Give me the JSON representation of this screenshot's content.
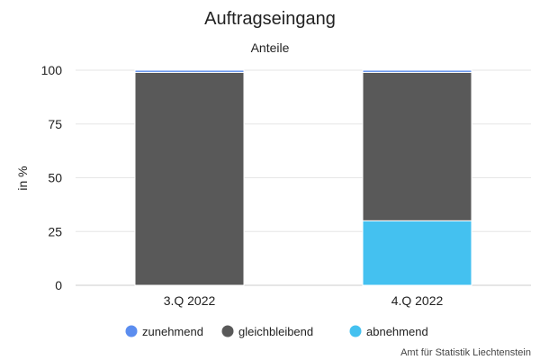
{
  "chart_data": {
    "type": "bar",
    "stacked": true,
    "title": "Auftragseingang",
    "subtitle": "Anteile",
    "ylabel": "in %",
    "xlabel": "",
    "ylim": [
      0,
      100
    ],
    "yticks": [
      0,
      25,
      50,
      75,
      100
    ],
    "categories": [
      "3.Q 2022",
      "4.Q 2022"
    ],
    "series": [
      {
        "name": "abnehmend",
        "color": "#44c1f0",
        "values": [
          0,
          30
        ]
      },
      {
        "name": "gleichbleibend",
        "color": "#595959",
        "values": [
          99,
          69
        ]
      },
      {
        "name": "zunehmend",
        "color": "#5b8def",
        "values": [
          1,
          1
        ]
      }
    ],
    "legend_order": [
      "zunehmend",
      "gleichbleibend",
      "abnehmend"
    ],
    "legend_position": "bottom",
    "grid": true
  },
  "credit": "Amt für Statistik Liechtenstein"
}
